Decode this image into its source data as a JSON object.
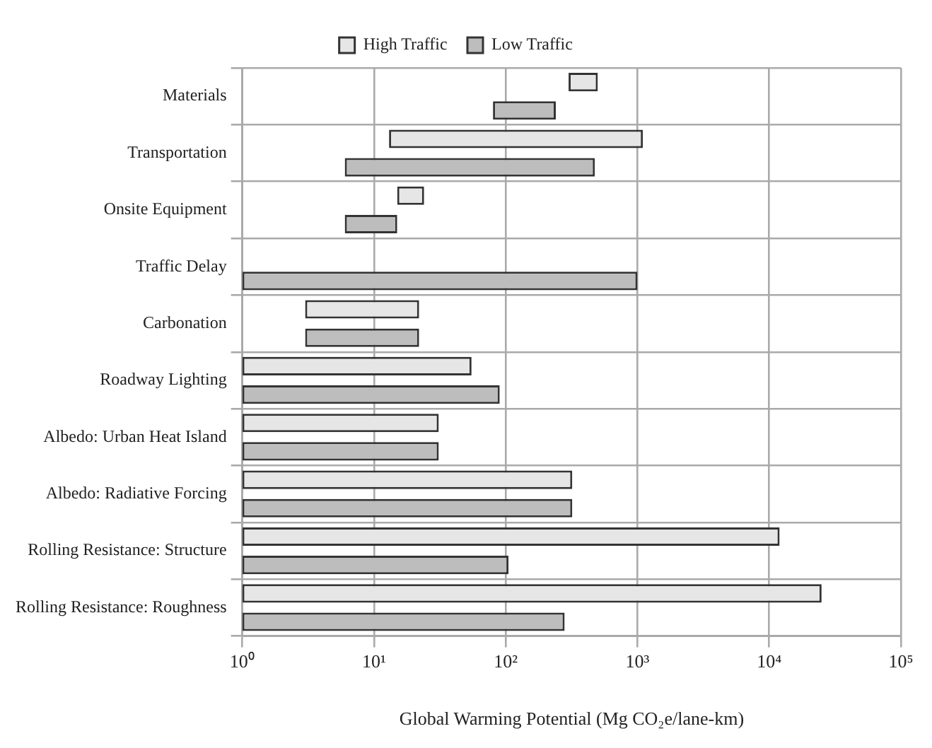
{
  "chart_data": {
    "type": "bar",
    "orientation": "horizontal",
    "xlabel": "Global Warming Potential (Mg CO₂e/lane-km)",
    "categories": [
      "Materials",
      "Transportation",
      "Onsite Equipment",
      "Traffic Delay",
      "Carbonation",
      "Roadway Lighting",
      "Albedo: Urban Heat Island",
      "Albedo: Radiative Forcing",
      "Rolling Resistance: Structure",
      "Rolling Resistance: Roughness"
    ],
    "series": [
      {
        "name": "High Traffic",
        "color": "#e6e6e6",
        "base": [
          300,
          13,
          15,
          null,
          3,
          1,
          1,
          1,
          1,
          1
        ],
        "values": [
          200,
          1087,
          9,
          null,
          19,
          54,
          30,
          319,
          11999,
          24999
        ]
      },
      {
        "name": "Low Traffic",
        "color": "#bdbdbd",
        "base": [
          80,
          6,
          6,
          1,
          3,
          1,
          1,
          1,
          1,
          1
        ],
        "values": [
          160,
          469,
          9,
          999,
          19,
          89,
          30,
          319,
          104,
          279
        ]
      }
    ],
    "log": "x",
    "xlim": [
      1,
      100000
    ],
    "xticks": [
      {
        "value": 1,
        "label": "10⁰"
      },
      {
        "value": 10,
        "label": "10¹"
      },
      {
        "value": 100,
        "label": "10²"
      },
      {
        "value": 1000,
        "label": "10³"
      },
      {
        "value": 10000,
        "label": "10⁴"
      },
      {
        "value": 100000,
        "label": "10⁵"
      }
    ],
    "grid": true,
    "legend": "top"
  }
}
